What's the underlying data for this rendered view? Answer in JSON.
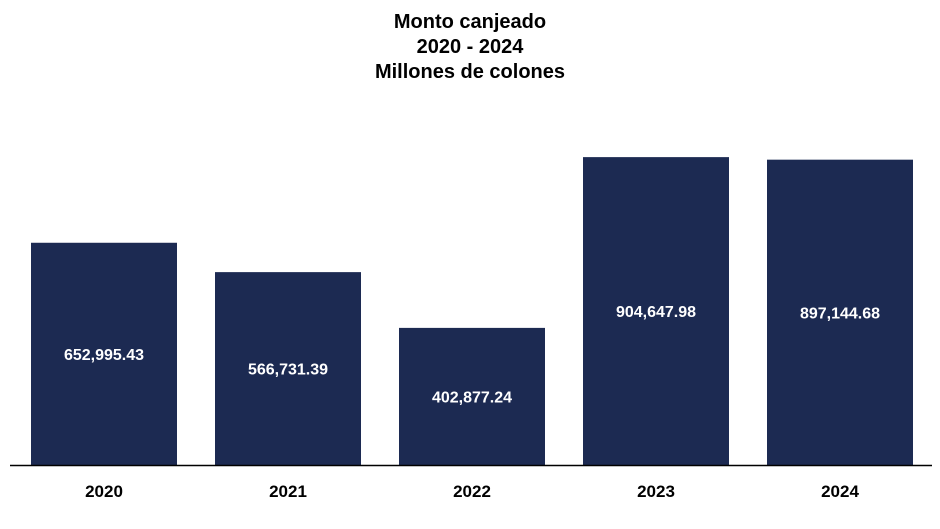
{
  "chart_data": {
    "type": "bar",
    "title_lines": [
      "Monto canjeado",
      "2020 - 2024",
      "Millones de colones"
    ],
    "categories": [
      "2020",
      "2021",
      "2022",
      "2023",
      "2024"
    ],
    "values": [
      652995.43,
      566731.39,
      402877.24,
      904647.98,
      897144.68
    ],
    "value_labels": [
      "652,995.43",
      "566,731.39",
      "402,877.24",
      "904,647.98",
      "897,144.68"
    ],
    "xlabel": "",
    "ylabel": "",
    "ylim": [
      0,
      905000
    ],
    "grid": false,
    "legend": "none",
    "bar_color": "#1c2a52",
    "label_color": "#ffffff",
    "axis_color": "#000000"
  }
}
